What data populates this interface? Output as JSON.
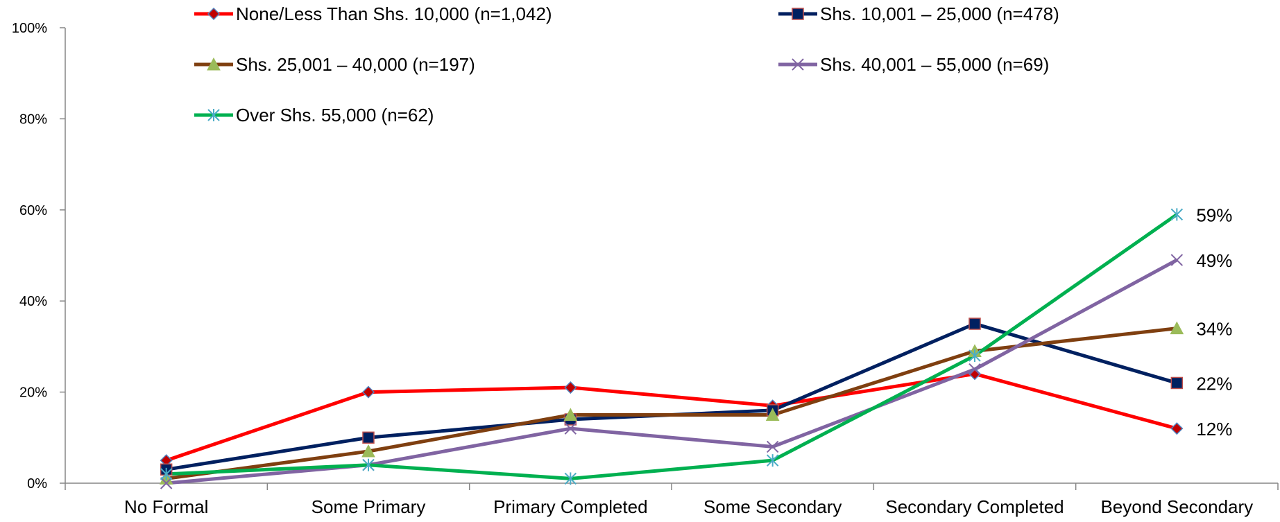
{
  "chart_data": {
    "type": "line",
    "categories": [
      "No Formal",
      "Some Primary",
      "Primary Completed",
      "Some Secondary",
      "Secondary Completed",
      "Beyond Secondary"
    ],
    "ylim": [
      0,
      100
    ],
    "yticks": [
      0,
      20,
      40,
      60,
      80,
      100
    ],
    "ytick_labels": [
      "0%",
      "20%",
      "40%",
      "60%",
      "80%",
      "100%"
    ],
    "grid": false,
    "legend_position": "top",
    "series": [
      {
        "name": "None/Less Than Shs. 10,000 (n=1,042)",
        "values": [
          5,
          20,
          21,
          17,
          24,
          12
        ],
        "color": "#FF0000",
        "marker": "diamond",
        "marker_fill": "#C00000",
        "marker_stroke": "#4F81BD",
        "end_label": "12%"
      },
      {
        "name": "Shs. 10,001 – 25,000 (n=478)",
        "values": [
          3,
          10,
          14,
          16,
          35,
          22
        ],
        "color": "#002060",
        "marker": "square",
        "marker_fill": "#002060",
        "marker_stroke": "#C0504D",
        "end_label": "22%"
      },
      {
        "name": "Shs. 25,001 – 40,000 (n=197)",
        "values": [
          1,
          7,
          15,
          15,
          29,
          34
        ],
        "color": "#7F3F10",
        "marker": "triangle",
        "marker_fill": "#9BBB59",
        "marker_stroke": "#9BBB59",
        "end_label": "34%"
      },
      {
        "name": "Shs. 40,001 – 55,000 (n=69)",
        "values": [
          0,
          4,
          12,
          8,
          25,
          49
        ],
        "color": "#8064A2",
        "marker": "x",
        "marker_fill": "#8064A2",
        "marker_stroke": "#8064A2",
        "end_label": "49%"
      },
      {
        "name": "Over Shs. 55,000 (n=62)",
        "values": [
          2,
          4,
          1,
          5,
          28,
          59
        ],
        "color": "#00B050",
        "marker": "star",
        "marker_fill": "#4BACC6",
        "marker_stroke": "#4BACC6",
        "end_label": "59%"
      }
    ]
  }
}
